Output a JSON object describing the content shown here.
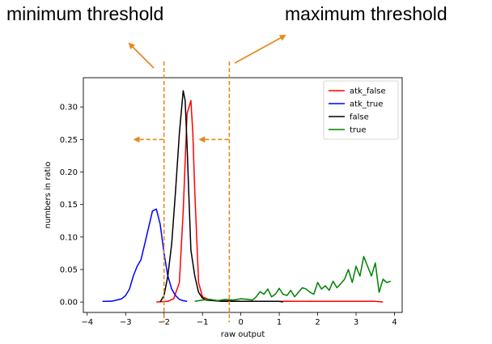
{
  "annotations": {
    "min_threshold": "minimum threshold",
    "max_threshold": "maximum threshold",
    "arrow_color": "#e8891c"
  },
  "chart_data": {
    "type": "line",
    "title": "",
    "xlabel": "raw output",
    "ylabel": "numbers in ratio",
    "xlim": [
      -4.1,
      4.2
    ],
    "ylim": [
      -0.016,
      0.345
    ],
    "xticks": [
      -4,
      -3,
      -2,
      -1,
      0,
      1,
      2,
      3,
      4
    ],
    "yticks": [
      0.0,
      0.05,
      0.1,
      0.15,
      0.2,
      0.25,
      0.3
    ],
    "ytick_labels": [
      "0.00",
      "0.05",
      "0.10",
      "0.15",
      "0.20",
      "0.25",
      "0.30"
    ],
    "grid": false,
    "legend_position": "top-right",
    "thresholds": [
      {
        "x": -2.0,
        "direction": "left"
      },
      {
        "x": -0.3,
        "direction": "left"
      }
    ],
    "series": [
      {
        "name": "atk_false",
        "color": "#ff0000",
        "x": [
          -2.2,
          -1.9,
          -1.75,
          -1.6,
          -1.5,
          -1.4,
          -1.3,
          -1.25,
          -1.2,
          -1.1,
          -1.0,
          -0.8,
          -0.5,
          0.0,
          0.5,
          1.0,
          1.5,
          2.0,
          2.5,
          3.0,
          3.5,
          3.7
        ],
        "y": [
          0.0,
          0.001,
          0.005,
          0.03,
          0.14,
          0.29,
          0.31,
          0.26,
          0.17,
          0.03,
          0.008,
          0.003,
          0.002,
          0.001,
          0.001,
          0.001,
          0.001,
          0.001,
          0.001,
          0.001,
          0.001,
          0.0
        ]
      },
      {
        "name": "atk_true",
        "color": "#0000ff",
        "x": [
          -3.6,
          -3.4,
          -3.3,
          -3.1,
          -3.0,
          -2.9,
          -2.8,
          -2.7,
          -2.6,
          -2.5,
          -2.4,
          -2.3,
          -2.2,
          -2.1,
          -2.0,
          -1.9,
          -1.8,
          -1.7,
          -1.6,
          -1.5,
          -1.4
        ],
        "y": [
          0.001,
          0.001,
          0.002,
          0.005,
          0.01,
          0.02,
          0.04,
          0.055,
          0.065,
          0.09,
          0.115,
          0.14,
          0.143,
          0.12,
          0.075,
          0.04,
          0.02,
          0.01,
          0.004,
          0.002,
          0.001
        ]
      },
      {
        "name": "false",
        "color": "#000000",
        "x": [
          -2.1,
          -2.0,
          -1.9,
          -1.8,
          -1.7,
          -1.6,
          -1.5,
          -1.45,
          -1.4,
          -1.35,
          -1.3,
          -1.2,
          -1.1,
          -1.0,
          -0.9,
          -0.7,
          -0.5,
          0.0,
          0.5,
          1.0,
          1.1
        ],
        "y": [
          0.0,
          0.01,
          0.04,
          0.09,
          0.17,
          0.26,
          0.325,
          0.31,
          0.24,
          0.16,
          0.08,
          0.04,
          0.015,
          0.006,
          0.003,
          0.002,
          0.001,
          0.001,
          0.001,
          0.001,
          0.0
        ]
      },
      {
        "name": "true",
        "color": "#008000",
        "x": [
          -1.2,
          -1.0,
          -0.8,
          -0.6,
          -0.4,
          -0.2,
          0.0,
          0.2,
          0.3,
          0.4,
          0.5,
          0.6,
          0.7,
          0.8,
          0.9,
          1.0,
          1.1,
          1.2,
          1.3,
          1.4,
          1.5,
          1.6,
          1.7,
          1.8,
          1.9,
          2.0,
          2.1,
          2.2,
          2.3,
          2.4,
          2.5,
          2.6,
          2.7,
          2.8,
          2.9,
          3.0,
          3.1,
          3.2,
          3.3,
          3.4,
          3.5,
          3.6,
          3.7,
          3.8,
          3.9
        ],
        "y": [
          0.001,
          0.003,
          0.004,
          0.002,
          0.004,
          0.003,
          0.005,
          0.004,
          0.003,
          0.008,
          0.016,
          0.012,
          0.02,
          0.008,
          0.012,
          0.021,
          0.012,
          0.01,
          0.018,
          0.008,
          0.015,
          0.022,
          0.02,
          0.015,
          0.012,
          0.03,
          0.02,
          0.025,
          0.018,
          0.032,
          0.022,
          0.028,
          0.035,
          0.05,
          0.03,
          0.055,
          0.04,
          0.07,
          0.055,
          0.04,
          0.06,
          0.015,
          0.035,
          0.03,
          0.032
        ]
      }
    ]
  }
}
